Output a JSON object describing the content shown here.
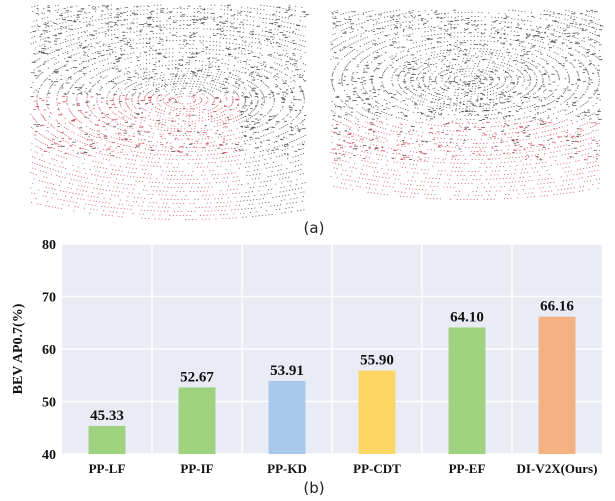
{
  "panel_a": {
    "caption": "(a)",
    "point_color_primary": "#1a1a1a",
    "point_color_secondary": "#c8283a"
  },
  "panel_b": {
    "caption": "(b)"
  },
  "chart_data": {
    "type": "bar",
    "categories": [
      "PP-LF",
      "PP-IF",
      "PP-KD",
      "PP-CDT",
      "PP-EF",
      "DI-V2X(Ours)"
    ],
    "values": [
      45.33,
      52.67,
      53.91,
      55.9,
      64.1,
      66.16
    ],
    "data_labels": [
      "45.33",
      "52.67",
      "53.91",
      "55.90",
      "64.10",
      "66.16"
    ],
    "bar_colors": [
      "#9fd27f",
      "#9fd27f",
      "#a9c8ec",
      "#fdd765",
      "#9fd27f",
      "#f4b183"
    ],
    "ylabel": "BEV AP0.7(%)",
    "xlabel": "",
    "ylim": [
      40,
      80
    ],
    "yticks": [
      40,
      50,
      60,
      70,
      80
    ],
    "grid": true,
    "plot_background": "#e9ebf5",
    "grid_color": "#ffffff"
  }
}
